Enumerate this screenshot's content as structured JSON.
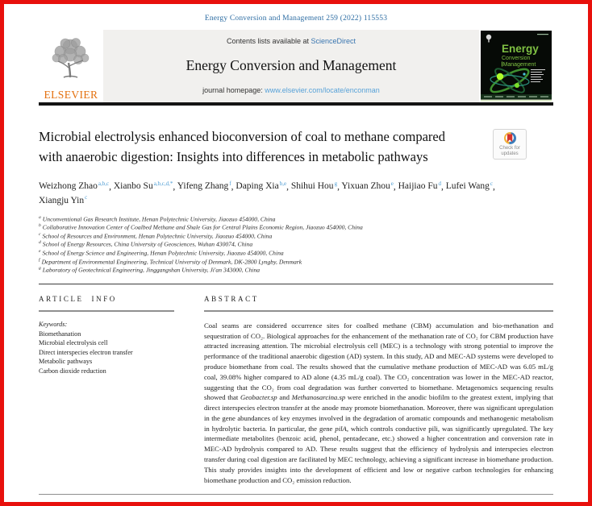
{
  "colors": {
    "border-red": "#e8100c",
    "link-blue": "#2d6da3",
    "sd-blue": "#3a76b0",
    "url-blue": "#58a2d8",
    "sup-blue": "#4b9bd3",
    "elsevier-orange": "#e4700e",
    "banner-gray": "#f1f0ee",
    "cover-green": "#7fc043"
  },
  "header": {
    "citation": "Energy Conversion and Management 259 (2022) 115553",
    "contents_line": "Contents lists available at ",
    "sciencedirect_link": "ScienceDirect",
    "journal_title": "Energy Conversion and Management",
    "homepage_label": "journal homepage: ",
    "homepage_url": "www.elsevier.com/locate/enconman",
    "publisher": "ELSEVIER",
    "cover_title_lines": [
      "Energy",
      "Conversion",
      "Management"
    ]
  },
  "badge": {
    "label": "Check for updates"
  },
  "article": {
    "title": "Microbial electrolysis enhanced bioconversion of coal to methane compared with anaerobic digestion: Insights into differences in metabolic pathways",
    "authors": [
      {
        "name": "Weizhong Zhao",
        "sup": "a,b,c"
      },
      {
        "name": "Xianbo Su",
        "sup": "a,b,c,d,*"
      },
      {
        "name": "Yifeng Zhang",
        "sup": "f"
      },
      {
        "name": "Daping Xia",
        "sup": "b,e"
      },
      {
        "name": "Shihui Hou",
        "sup": "g"
      },
      {
        "name": "Yixuan Zhou",
        "sup": "e"
      },
      {
        "name": "Haijiao Fu",
        "sup": "d"
      },
      {
        "name": "Lufei Wang",
        "sup": "c"
      },
      {
        "name": "Xiangju Yin",
        "sup": "c"
      }
    ],
    "affiliations": [
      {
        "marker": "a",
        "text": "Unconventional Gas Research Institute, Henan Polytechnic University, Jiaozuo 454000, China"
      },
      {
        "marker": "b",
        "text": "Collaborative Innovation Center of Coalbed Methane and Shale Gas for Central Plains Economic Region, Jiaozuo 454000, China"
      },
      {
        "marker": "c",
        "text": "School of Resources and Environment, Henan Polytechnic University, Jiaozuo 454000, China"
      },
      {
        "marker": "d",
        "text": "School of Energy Resources, China University of Geosciences, Wuhan 430074, China"
      },
      {
        "marker": "e",
        "text": "School of Energy Science and Engineering, Henan Polytechnic University, Jiaozuo 454000, China"
      },
      {
        "marker": "f",
        "text": "Department of Environmental Engineering, Technical University of Denmark, DK-2800 Lyngby, Denmark"
      },
      {
        "marker": "g",
        "text": "Laboratory of Geotechnical Engineering, Jinggangshan University, Ji'an 343000, China"
      }
    ]
  },
  "article_info": {
    "heading": "ARTICLE INFO",
    "keywords_label": "Keywords:",
    "keywords": [
      "Biomethanation",
      "Microbial electrolysis cell",
      "Direct interspecies electron transfer",
      "Metabolic pathways",
      "Carbon dioxide reduction"
    ]
  },
  "abstract_section": {
    "heading": "ABSTRACT",
    "segments": [
      {
        "italic": false,
        "text": "Coal seams are considered occurrence sites for coalbed methane (CBM) accumulation and bio-methanation and sequestration of CO₂. Biological approaches for the enhancement of the methanation rate of CO₂ for CBM production have attracted increasing attention. The microbial electrolysis cell (MEC) is a technology with strong potential to improve the performance of the traditional anaerobic digestion (AD) system. In this study, AD and MEC-AD systems were developed to produce biomethane from coal. The results showed that the cumulative methane production of MEC-AD was 6.05 mL/g coal, 39.08% higher compared to AD alone (4.35 mL/g coal). The CO₂ concentration was lower in the MEC-AD reactor, suggesting that the CO₂ from coal degradation was further converted to biomethane. Metagenomics sequencing results showed that "
      },
      {
        "italic": true,
        "text": "Geobacter.sp"
      },
      {
        "italic": false,
        "text": " and "
      },
      {
        "italic": true,
        "text": "Methanosarcina.sp"
      },
      {
        "italic": false,
        "text": " were enriched in the anodic biofilm to the greatest extent, implying that direct interspecies electron transfer at the anode may promote biomethanation. Moreover, there was significant upregulation in the gene abundances of key enzymes involved in the degradation of aromatic compounds and methanogenic metabolism in hydrolytic bacteria. In particular, the gene "
      },
      {
        "italic": true,
        "text": "pilA"
      },
      {
        "italic": false,
        "text": ", which controls conductive pili, was significantly upregulated. The key intermediate metabolites (benzoic acid, phenol, pentadecane, etc.) showed a higher concentration and conversion rate in MEC-AD hydrolysis compared to AD. These results suggest that the efficiency of hydrolysis and interspecies electron transfer during coal digestion are facilitated by MEC technology, achieving a significant increase in biomethane production. This study provides insights into the development of efficient and low or negative carbon technologies for enhancing biomethane production and CO₂ emission reduction."
      }
    ]
  }
}
